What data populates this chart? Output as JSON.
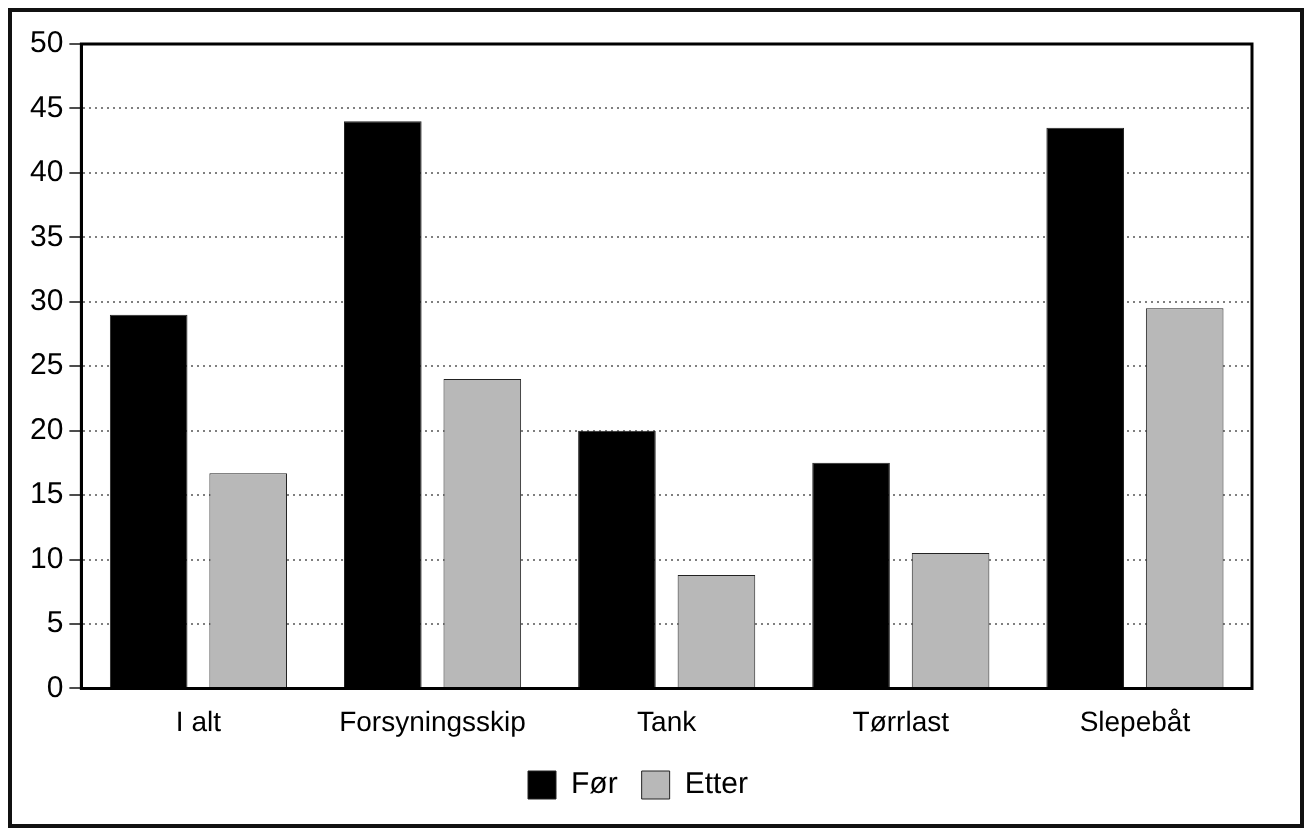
{
  "chart_data": {
    "type": "bar",
    "categories": [
      "I alt",
      "Forsyningsskip",
      "Tank",
      "Tørrlast",
      "Slepebåt"
    ],
    "series": [
      {
        "name": "Før",
        "color": "#000000",
        "values": [
          29,
          44,
          20,
          17.5,
          43.5
        ]
      },
      {
        "name": "Etter",
        "color": "#b8b8b8",
        "values": [
          16.7,
          24,
          8.8,
          10.5,
          29.5
        ]
      }
    ],
    "ylim": [
      0,
      50
    ],
    "yticks": [
      0,
      5,
      10,
      15,
      20,
      25,
      30,
      35,
      40,
      45,
      50
    ],
    "grid": "y",
    "legend": "bottom"
  }
}
